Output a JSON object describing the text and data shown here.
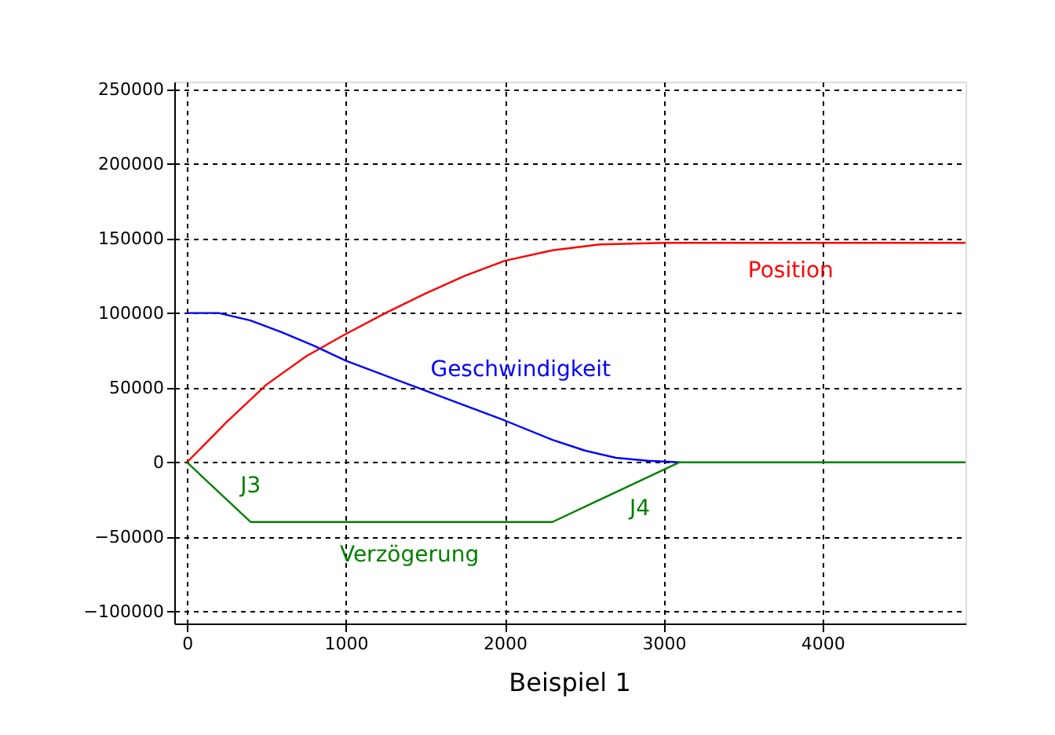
{
  "chart_data": {
    "type": "line",
    "title": "Beispiel 1",
    "xlim": [
      -80,
      4900
    ],
    "xticks": [
      0,
      1000,
      2000,
      3000,
      4000
    ],
    "ylim": [
      -108000,
      255000
    ],
    "yticks": [
      -100000,
      -50000,
      0,
      50000,
      100000,
      150000,
      200000,
      250000
    ],
    "grid": true,
    "marker": "none",
    "line_style": "solid",
    "series": [
      {
        "name": "Position",
        "color": "#ff0000",
        "x": [
          0,
          250,
          500,
          750,
          1000,
          1250,
          1500,
          1750,
          2000,
          2300,
          2600,
          3000,
          4900
        ],
        "values": [
          0,
          27000,
          52000,
          71000,
          86000,
          100000,
          113000,
          125000,
          135000,
          142000,
          146000,
          147000,
          147000
        ]
      },
      {
        "name": "Geschwindigkeit",
        "color": "#0000ff",
        "x": [
          0,
          200,
          400,
          600,
          800,
          1000,
          1500,
          2000,
          2300,
          2500,
          2700,
          2900,
          3100
        ],
        "values": [
          100000,
          100000,
          95000,
          87000,
          78000,
          68000,
          48000,
          28000,
          15000,
          8000,
          3000,
          1000,
          0
        ]
      },
      {
        "name": "Verzögerung",
        "color": "#008000",
        "x": [
          0,
          400,
          2300,
          3100,
          4900
        ],
        "values": [
          0,
          -40000,
          -40000,
          0,
          0
        ]
      }
    ],
    "annotations": [
      "J3",
      "J4"
    ]
  }
}
